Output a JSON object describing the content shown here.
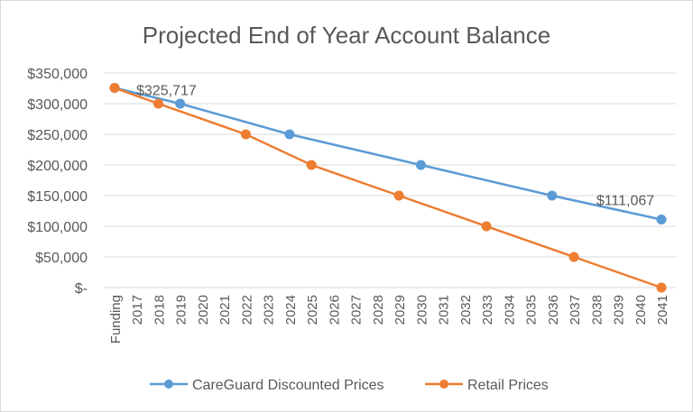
{
  "chart_data": {
    "type": "line",
    "title": "Projected End of Year Account Balance",
    "categories": [
      "Funding",
      "2017",
      "2018",
      "2019",
      "2020",
      "2021",
      "2022",
      "2023",
      "2024",
      "2025",
      "2026",
      "2027",
      "2028",
      "2029",
      "2030",
      "2031",
      "2032",
      "2033",
      "2034",
      "2035",
      "2036",
      "2037",
      "2038",
      "2039",
      "2040",
      "2041"
    ],
    "ylim": [
      0,
      350000
    ],
    "yticks": [
      0,
      50000,
      100000,
      150000,
      200000,
      250000,
      300000,
      350000
    ],
    "ytick_labels": [
      "$-",
      "$50,000",
      "$100,000",
      "$150,000",
      "$200,000",
      "$250,000",
      "$300,000",
      "$350,000"
    ],
    "grid": true,
    "legend": "bottom",
    "series": [
      {
        "name": "CareGuard Discounted Prices",
        "color": "#5b9bd5",
        "points": [
          [
            "Funding",
            325717
          ],
          [
            "2019",
            300000
          ],
          [
            "2024",
            250000
          ],
          [
            "2030",
            200000
          ],
          [
            "2036",
            150000
          ],
          [
            "2041",
            111067
          ]
        ]
      },
      {
        "name": "Retail Prices",
        "color": "#ed7d31",
        "points": [
          [
            "Funding",
            325717
          ],
          [
            "2018",
            300000
          ],
          [
            "2022",
            250000
          ],
          [
            "2025",
            200000
          ],
          [
            "2029",
            150000
          ],
          [
            "2033",
            100000
          ],
          [
            "2037",
            50000
          ],
          [
            "2041",
            0
          ]
        ]
      }
    ],
    "annotations": [
      {
        "text": "$325,717",
        "category": "Funding",
        "value": 325717
      },
      {
        "text": "$111,067",
        "category": "2041",
        "value": 111067
      }
    ]
  }
}
